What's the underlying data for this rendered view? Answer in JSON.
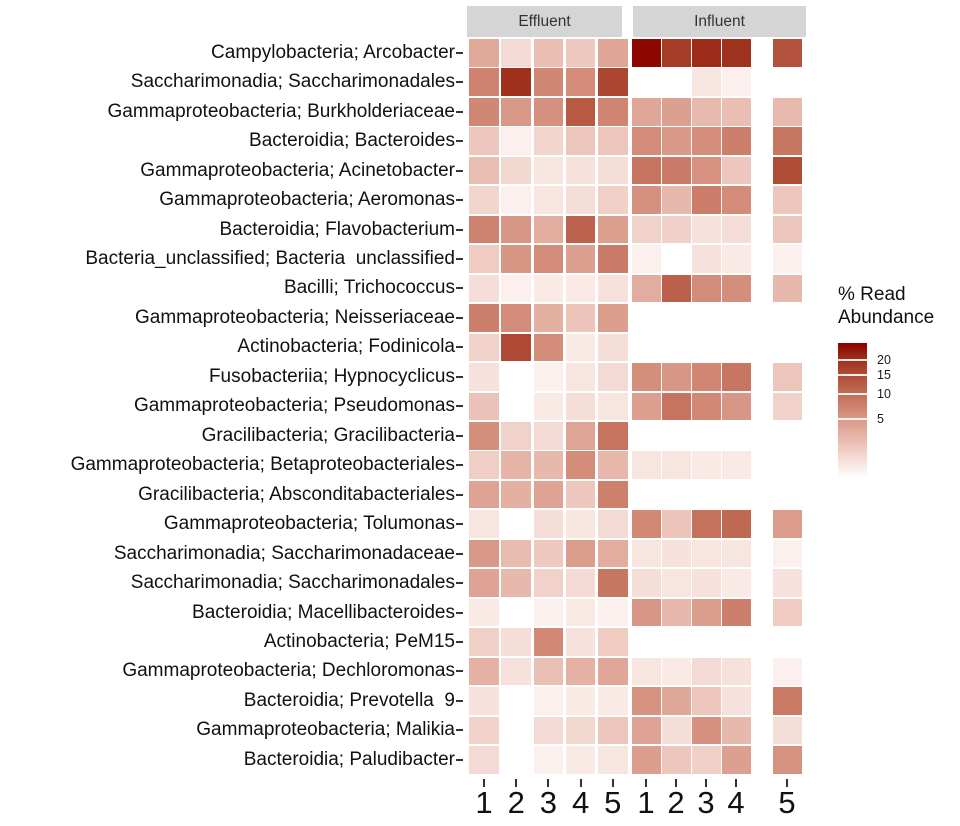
{
  "figure": {
    "facet_labels": [
      "Effluent",
      "Influent"
    ],
    "legend": {
      "title_line1": "% Read",
      "title_line2": "Abundance",
      "ticks": [
        20,
        15,
        10,
        5
      ]
    }
  },
  "chart_data": {
    "type": "heatmap",
    "facets": [
      "Effluent",
      "Influent"
    ],
    "x_categories": [
      "1",
      "2",
      "3",
      "4",
      "5"
    ],
    "y_categories": [
      "Campylobacteria; Arcobacter",
      "Saccharimonadia; Saccharimonadales",
      "Gammaproteobacteria; Burkholderiaceae",
      "Bacteroidia; Bacteroides",
      "Gammaproteobacteria; Acinetobacter",
      "Gammaproteobacteria; Aeromonas",
      "Bacteroidia; Flavobacterium",
      "Bacteria_unclassified; Bacteria  unclassified",
      "Bacilli; Trichococcus",
      "Gammaproteobacteria; Neisseriaceae",
      "Actinobacteria; Fodinicola",
      "Fusobacteriia; Hypnocyclicus",
      "Gammaproteobacteria; Pseudomonas",
      "Gracilibacteria; Gracilibacteria",
      "Gammaproteobacteria; Betaproteobacteriales",
      "Gracilibacteria; Absconditabacteriales",
      "Gammaproteobacteria; Tolumonas",
      "Saccharimonadia; Saccharimonadaceae",
      "Saccharimonadia; Saccharimonadales",
      "Bacteroidia; Macellibacteroides",
      "Actinobacteria; PeM15",
      "Gammaproteobacteria; Dechloromonas",
      "Bacteroidia; Prevotella  9",
      "Gammaproteobacteria; Malikia",
      "Bacteroidia; Paludibacter"
    ],
    "fill_label": "% Read Abundance",
    "fill_scale": {
      "low": "#FFFFFF",
      "high": "#8B0000",
      "transform": "sqrt",
      "domain": [
        0,
        26
      ],
      "legend_ticks": [
        5,
        10,
        15,
        20
      ]
    },
    "values_effluent": [
      [
        3.4,
        0.6,
        1.9,
        1.3,
        3.7
      ],
      [
        7.3,
        19.9,
        6.8,
        6.1,
        16.2
      ],
      [
        6.8,
        4.8,
        5.7,
        13.1,
        7.0
      ],
      [
        1.4,
        0.1,
        0.8,
        1.5,
        1.5
      ],
      [
        2.0,
        0.7,
        0.3,
        0.4,
        0.5
      ],
      [
        0.8,
        0.1,
        0.3,
        0.5,
        1.0
      ],
      [
        7.2,
        5.0,
        3.0,
        11.5,
        4.2
      ],
      [
        1.2,
        5.2,
        6.2,
        4.2,
        8.2
      ],
      [
        0.5,
        0.1,
        0.2,
        0.2,
        0.4
      ],
      [
        7.7,
        6.2,
        2.9,
        1.6,
        4.4
      ],
      [
        0.9,
        15.6,
        6.1,
        0.2,
        0.5
      ],
      [
        0.4,
        0.0,
        0.1,
        0.3,
        0.6
      ],
      [
        1.7,
        0.0,
        0.2,
        0.5,
        0.3
      ],
      [
        5.9,
        0.9,
        0.6,
        3.8,
        9.1
      ],
      [
        1.1,
        2.6,
        2.3,
        6.1,
        2.4
      ],
      [
        3.9,
        2.9,
        3.9,
        1.4,
        7.6
      ],
      [
        0.3,
        0.0,
        0.5,
        0.3,
        0.6
      ],
      [
        4.8,
        2.1,
        1.3,
        4.4,
        3.1
      ],
      [
        3.9,
        2.3,
        0.9,
        0.6,
        8.9
      ],
      [
        0.2,
        0.0,
        0.1,
        0.2,
        0.1
      ],
      [
        1.0,
        0.5,
        6.5,
        0.4,
        1.2
      ],
      [
        2.8,
        0.4,
        1.8,
        2.8,
        3.6
      ],
      [
        0.4,
        0.0,
        0.1,
        0.2,
        0.2
      ],
      [
        0.9,
        0.0,
        0.6,
        0.7,
        1.5
      ],
      [
        0.6,
        0.0,
        0.1,
        0.2,
        0.3
      ]
    ],
    "values_influent": [
      [
        25.5,
        17.9,
        20.6,
        19.7,
        14.2
      ],
      [
        0.0,
        0.0,
        0.3,
        0.1,
        0.0
      ],
      [
        3.6,
        4.2,
        2.2,
        1.9,
        2.2
      ],
      [
        6.2,
        4.8,
        6.0,
        7.7,
        8.9
      ],
      [
        9.1,
        8.2,
        5.6,
        1.4,
        15.0
      ],
      [
        5.7,
        2.3,
        8.0,
        6.2,
        1.4
      ],
      [
        0.9,
        1.0,
        0.4,
        0.5,
        1.5
      ],
      [
        0.1,
        0.0,
        0.4,
        0.2,
        0.1
      ],
      [
        3.1,
        12.0,
        6.2,
        6.0,
        2.3
      ],
      [
        0.0,
        0.0,
        0.0,
        0.0,
        0.0
      ],
      [
        0.0,
        0.0,
        0.0,
        0.0,
        0.0
      ],
      [
        5.9,
        5.0,
        6.9,
        8.9,
        1.5
      ],
      [
        4.3,
        9.1,
        6.5,
        5.0,
        0.9
      ],
      [
        0.0,
        0.0,
        0.0,
        0.0,
        0.0
      ],
      [
        0.3,
        0.3,
        0.2,
        0.2,
        0.0
      ],
      [
        0.0,
        0.0,
        0.0,
        0.0,
        0.0
      ],
      [
        6.5,
        1.6,
        9.4,
        10.8,
        4.5
      ],
      [
        0.3,
        0.4,
        0.3,
        0.3,
        0.1
      ],
      [
        0.5,
        0.3,
        0.4,
        0.2,
        0.4
      ],
      [
        5.0,
        2.3,
        4.4,
        7.7,
        1.2
      ],
      [
        0.0,
        0.0,
        0.0,
        0.0,
        0.0
      ],
      [
        0.3,
        0.2,
        0.6,
        0.4,
        0.1
      ],
      [
        5.4,
        3.5,
        1.5,
        0.4,
        8.5
      ],
      [
        3.9,
        0.5,
        5.7,
        2.3,
        0.5
      ],
      [
        4.4,
        1.4,
        1.0,
        4.2,
        5.5
      ]
    ]
  }
}
